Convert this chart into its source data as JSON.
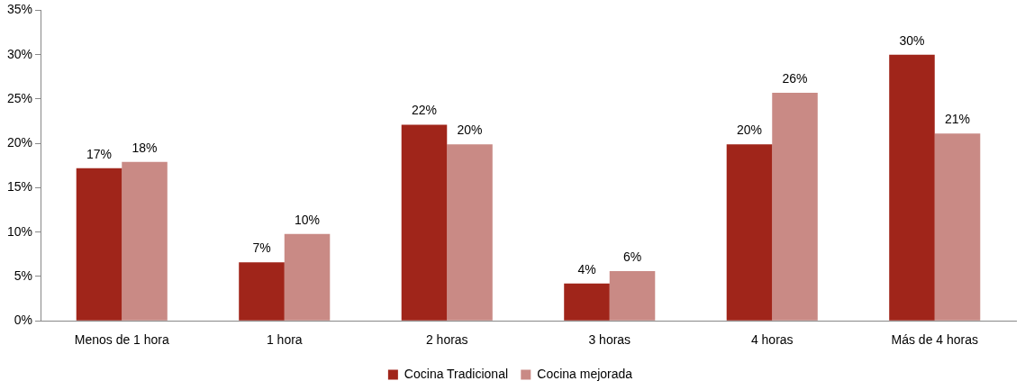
{
  "chart_data": {
    "type": "bar",
    "categories": [
      "Menos de 1 hora",
      "1 hora",
      "2 horas",
      "3 horas",
      "4 horas",
      "Más de 4 horas"
    ],
    "series": [
      {
        "name": "Cocina Tradicional",
        "color": "#a0251a",
        "values": [
          17.2,
          6.6,
          22.1,
          4.2,
          19.9,
          30.0
        ],
        "value_labels": [
          "17%",
          "7%",
          "22%",
          "4%",
          "20%",
          "30%"
        ]
      },
      {
        "name": "Cocina mejorada",
        "color": "#c98a85",
        "values": [
          17.9,
          9.8,
          19.9,
          5.6,
          25.7,
          21.1
        ],
        "value_labels": [
          "18%",
          "10%",
          "20%",
          "6%",
          "26%",
          "21%"
        ]
      }
    ],
    "ylim": [
      0,
      35
    ],
    "yticks": [
      {
        "value": 0,
        "label": "0%"
      },
      {
        "value": 5,
        "label": "5%"
      },
      {
        "value": 10,
        "label": "10%"
      },
      {
        "value": 15,
        "label": "15%"
      },
      {
        "value": 20,
        "label": "20%"
      },
      {
        "value": 25,
        "label": "25%"
      },
      {
        "value": 30,
        "label": "30%"
      },
      {
        "value": 35,
        "label": "35%"
      }
    ],
    "grid": false,
    "legend": "bottom"
  }
}
